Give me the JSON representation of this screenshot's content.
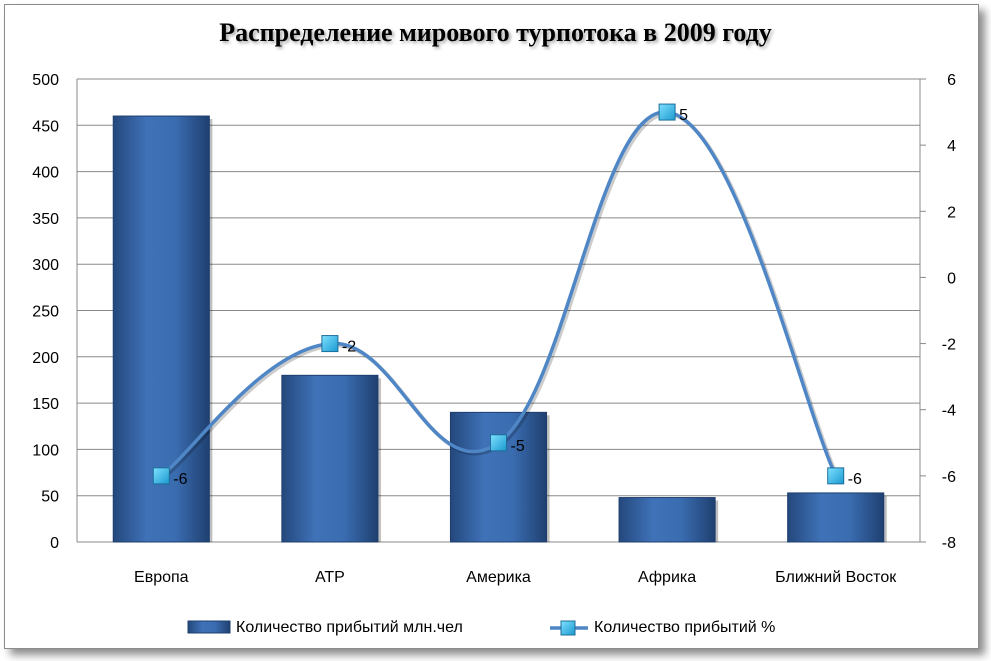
{
  "chart_data": {
    "type": "bar+line",
    "title": "Распределение мирового турпотока в 2009 году",
    "categories": [
      "Европа",
      "АТР",
      "Америка",
      "Африка",
      "Ближний Восток"
    ],
    "series": [
      {
        "name": "Количество прибытий млн.чел",
        "type": "bar",
        "axis": "left",
        "values": [
          460,
          180,
          140,
          48,
          53
        ],
        "color": "#2e5b9a"
      },
      {
        "name": "Количество прибытий %",
        "type": "line",
        "axis": "right",
        "smooth": true,
        "values": [
          -6,
          -2,
          -5,
          5,
          -6
        ],
        "data_labels": [
          "-6",
          "-2",
          "-5",
          "5",
          "-6"
        ],
        "color": "#4f86c6",
        "marker_color": "#25b4e6"
      }
    ],
    "left_axis": {
      "ylim": [
        0,
        500
      ],
      "ticks": [
        "0",
        "50",
        "100",
        "150",
        "200",
        "250",
        "300",
        "350",
        "400",
        "450",
        "500"
      ]
    },
    "right_axis": {
      "ylim": [
        -8,
        6
      ],
      "ticks": [
        "-8",
        "-6",
        "-4",
        "-2",
        "0",
        "2",
        "4",
        "6"
      ]
    },
    "grid": true,
    "legend_position": "bottom"
  }
}
